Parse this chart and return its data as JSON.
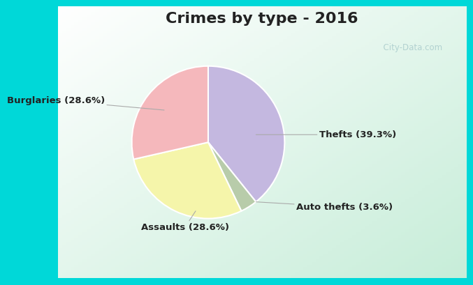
{
  "title": "Crimes by type - 2016",
  "slices": [
    {
      "label": "Thefts (39.3%)",
      "value": 39.3,
      "color": "#c4b8e0"
    },
    {
      "label": "Auto thefts (3.6%)",
      "value": 3.6,
      "color": "#b8ccaa"
    },
    {
      "label": "Assaults (28.6%)",
      "value": 28.6,
      "color": "#f5f5aa"
    },
    {
      "label": "Burglaries (28.6%)",
      "value": 28.6,
      "color": "#f5b8bc"
    }
  ],
  "background_color": "#00d8d8",
  "title_fontsize": 16,
  "title_color": "#222222",
  "label_fontsize": 9.5,
  "label_color": "#222222",
  "startangle": 90,
  "watermark": "  City-Data.com"
}
